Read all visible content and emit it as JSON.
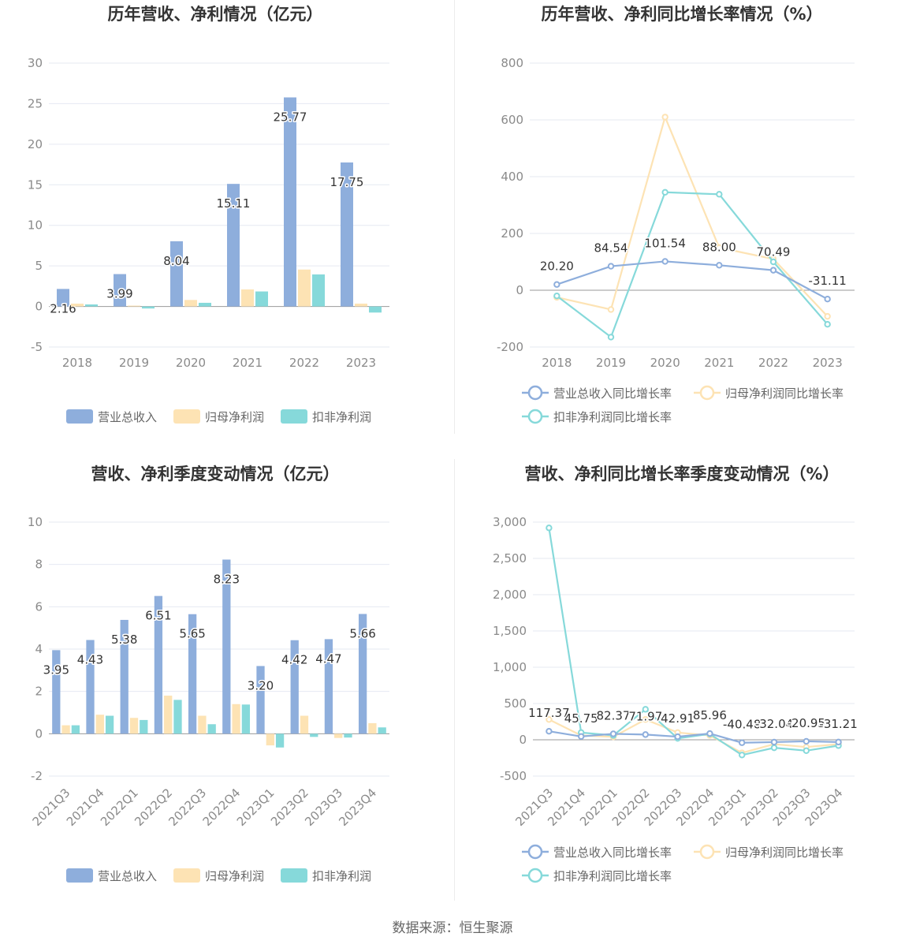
{
  "colors": {
    "revenue": "#8eaedc",
    "profit": "#fde3b4",
    "deducted": "#86d9da"
  },
  "footer": {
    "source": "数据来源：恒生聚源"
  },
  "chart_data": [
    {
      "type": "bar",
      "title": "历年营收、净利情况（亿元）",
      "categories": [
        "2018",
        "2019",
        "2020",
        "2021",
        "2022",
        "2023"
      ],
      "ylim": [
        -5,
        30
      ],
      "yticks": [
        -5,
        0,
        5,
        10,
        15,
        20,
        25,
        30
      ],
      "series": [
        {
          "name": "营业总收入",
          "values": [
            2.16,
            3.99,
            8.04,
            15.11,
            25.77,
            17.75
          ],
          "labels": [
            "2.16",
            "3.99",
            "8.04",
            "15.11",
            "25.77",
            "17.75"
          ]
        },
        {
          "name": "归母净利润",
          "values": [
            0.35,
            0.1,
            0.8,
            2.1,
            4.55,
            0.35
          ]
        },
        {
          "name": "扣非净利润",
          "values": [
            0.25,
            -0.25,
            0.45,
            1.85,
            3.95,
            -0.75
          ]
        }
      ],
      "legend": "bottom"
    },
    {
      "type": "line",
      "title": "历年营收、净利同比增长率情况（%）",
      "categories": [
        "2018",
        "2019",
        "2020",
        "2021",
        "2022",
        "2023"
      ],
      "ylim": [
        -200,
        800
      ],
      "yticks": [
        -200,
        0,
        200,
        400,
        600,
        800
      ],
      "series": [
        {
          "name": "营业总收入同比增长率",
          "values": [
            20.2,
            84.54,
            101.54,
            88.0,
            70.49,
            -31.11
          ],
          "labels": [
            "20.20",
            "84.54",
            "101.54",
            "88.00",
            "70.49",
            "-31.11"
          ]
        },
        {
          "name": "归母净利润同比增长率",
          "values": [
            -25,
            -68,
            610,
            150,
            110,
            -92
          ]
        },
        {
          "name": "扣非净利润同比增长率",
          "values": [
            -20,
            -165,
            345,
            338,
            100,
            -120
          ]
        }
      ],
      "legend": "bottom"
    },
    {
      "type": "bar",
      "title": "营收、净利季度变动情况（亿元）",
      "categories": [
        "2021Q3",
        "2021Q4",
        "2022Q1",
        "2022Q2",
        "2022Q3",
        "2022Q4",
        "2023Q1",
        "2023Q2",
        "2023Q3",
        "2023Q4"
      ],
      "ylim": [
        -2,
        10
      ],
      "yticks": [
        -2,
        0,
        2,
        4,
        6,
        8,
        10
      ],
      "series": [
        {
          "name": "营业总收入",
          "values": [
            3.95,
            4.43,
            5.38,
            6.51,
            5.65,
            8.23,
            3.2,
            4.42,
            4.47,
            5.66
          ],
          "labels": [
            "3.95",
            "4.43",
            "5.38",
            "6.51",
            "5.65",
            "8.23",
            "3.20",
            "4.42",
            "4.47",
            "5.66"
          ]
        },
        {
          "name": "归母净利润",
          "values": [
            0.4,
            0.9,
            0.75,
            1.8,
            0.85,
            1.4,
            -0.55,
            0.85,
            -0.2,
            0.5
          ]
        },
        {
          "name": "扣非净利润",
          "values": [
            0.4,
            0.85,
            0.65,
            1.6,
            0.45,
            1.38,
            -0.65,
            -0.15,
            -0.18,
            0.3
          ]
        }
      ],
      "legend": "bottom"
    },
    {
      "type": "line",
      "title": "营收、净利同比增长率季度变动情况（%）",
      "categories": [
        "2021Q3",
        "2021Q4",
        "2022Q1",
        "2022Q2",
        "2022Q3",
        "2022Q4",
        "2023Q1",
        "2023Q2",
        "2023Q3",
        "2023Q4"
      ],
      "ylim": [
        -500,
        3000
      ],
      "yticks": [
        -500,
        0,
        500,
        1000,
        1500,
        2000,
        2500,
        3000
      ],
      "ytickLabels": [
        "-500",
        "0",
        "500",
        "1,000",
        "1,500",
        "2,000",
        "2,500",
        "3,000"
      ],
      "series": [
        {
          "name": "营业总收入同比增长率",
          "values": [
            117.37,
            45.75,
            82.37,
            71.97,
            42.91,
            85.96,
            -40.48,
            -32.04,
            -20.95,
            -31.21
          ],
          "labels": [
            "117.37",
            "45.75",
            "82.37",
            "71.97",
            "42.91",
            "85.96",
            "-40.48",
            "-32.04",
            "-20.95",
            "-31.21"
          ]
        },
        {
          "name": "归母净利润同比增长率",
          "values": [
            280,
            60,
            40,
            280,
            100,
            60,
            -180,
            -60,
            -100,
            -60
          ]
        },
        {
          "name": "扣非净利润同比增长率",
          "values": [
            2920,
            100,
            60,
            420,
            20,
            80,
            -210,
            -110,
            -150,
            -80
          ]
        }
      ],
      "legend": "bottom"
    }
  ]
}
